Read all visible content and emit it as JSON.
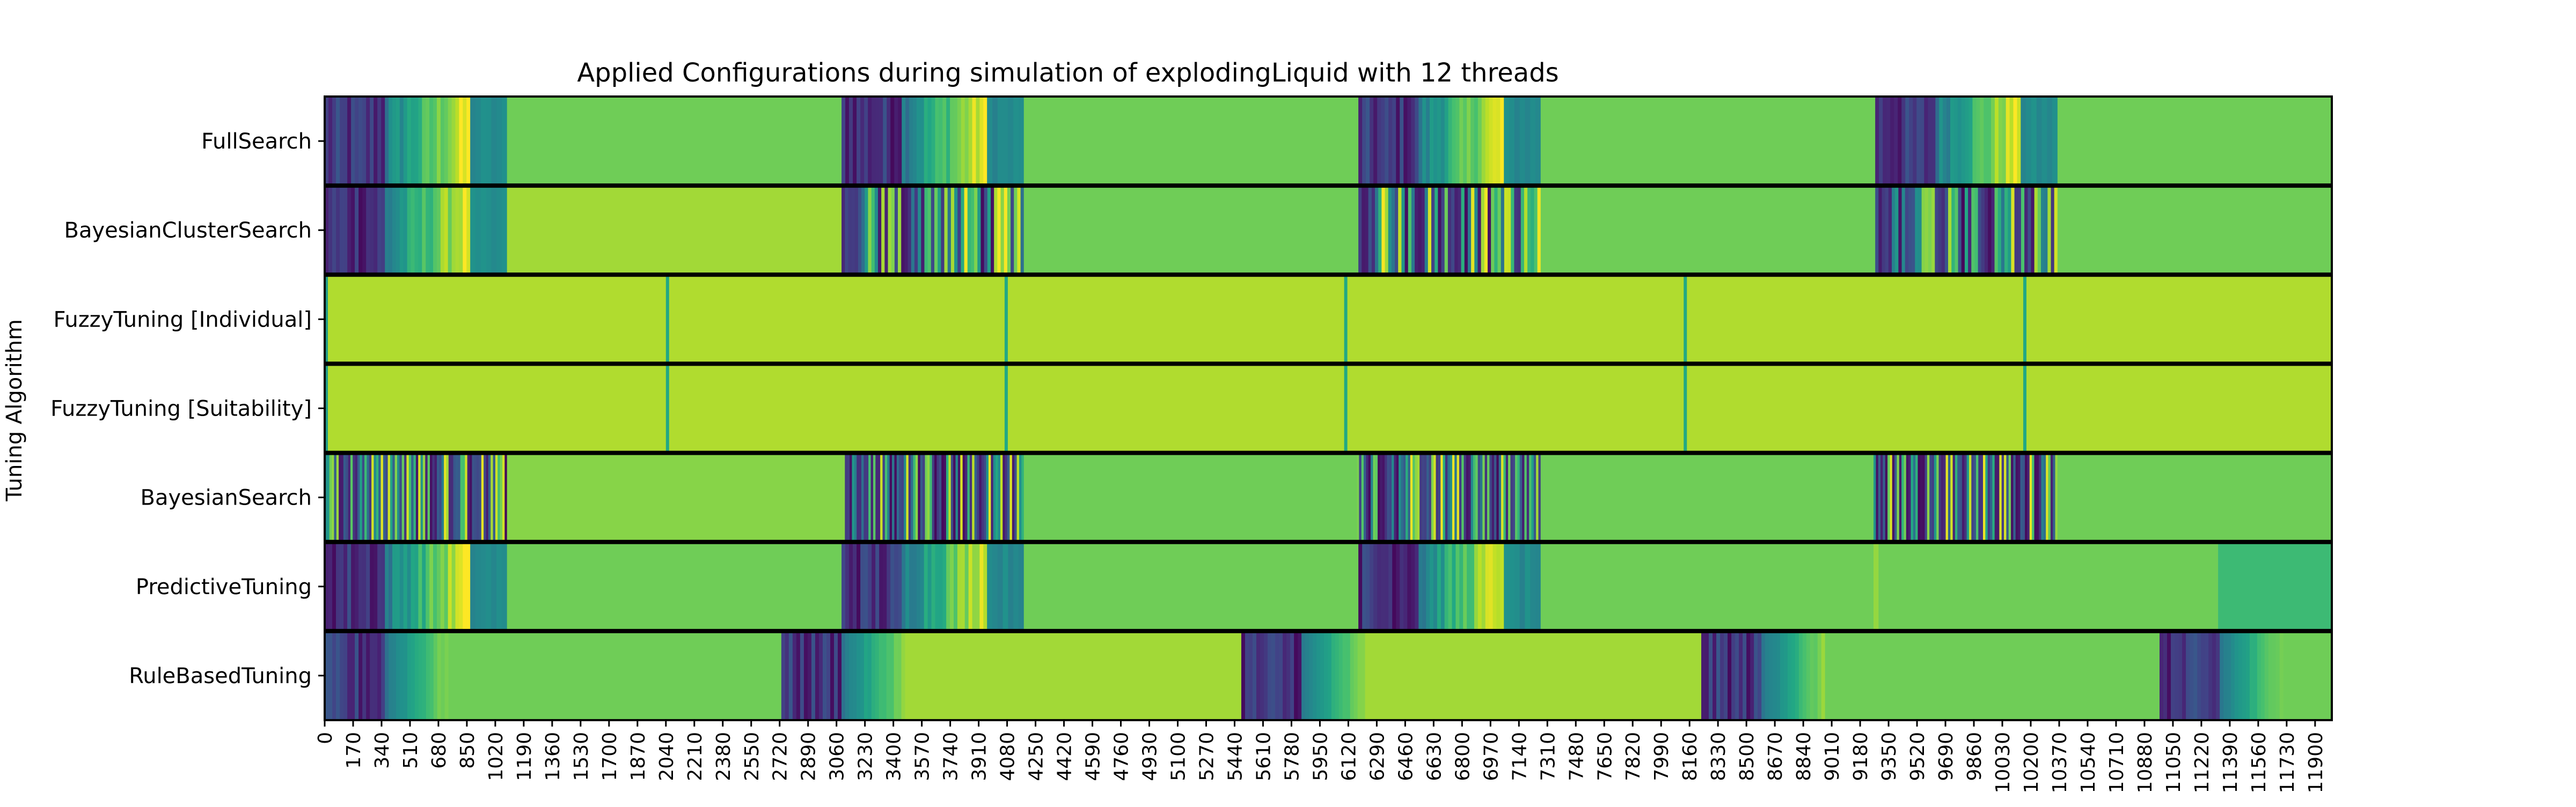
{
  "chart_data": {
    "type": "heatmap",
    "title": "Applied Configurations during simulation of explodingLiquid with 12 threads",
    "xlabel": "",
    "ylabel": "Tuning Algorithm",
    "xlim": [
      0,
      12000
    ],
    "grid": false,
    "colormap": "viridis",
    "rows": [
      "FullSearch",
      "BayesianClusterSearch",
      "FuzzyTuning [Individual]",
      "FuzzyTuning [Suitability]",
      "BayesianSearch",
      "PredictiveTuning",
      "RuleBasedTuning"
    ],
    "x_ticks": [
      0,
      170,
      340,
      510,
      680,
      850,
      1020,
      1190,
      1360,
      1530,
      1700,
      1870,
      2040,
      2210,
      2380,
      2550,
      2720,
      2890,
      3060,
      3230,
      3400,
      3570,
      3740,
      3910,
      4080,
      4250,
      4420,
      4590,
      4760,
      4930,
      5100,
      5270,
      5440,
      5610,
      5780,
      5950,
      6120,
      6290,
      6460,
      6630,
      6800,
      6970,
      7140,
      7310,
      7480,
      7650,
      7820,
      7990,
      8160,
      8330,
      8500,
      8670,
      8840,
      9010,
      9180,
      9350,
      9520,
      9690,
      9860,
      10030,
      10200,
      10370,
      10540,
      10710,
      10880,
      11050,
      11220,
      11390,
      11560,
      11730,
      11900
    ],
    "segments": [
      [
        {
          "start": 0,
          "end": 360,
          "pattern": "dark"
        },
        {
          "start": 360,
          "end": 870,
          "pattern": "ramp"
        },
        {
          "start": 870,
          "end": 1090,
          "pattern": "teal"
        },
        {
          "start": 1090,
          "end": 3090,
          "value": 0.78
        },
        {
          "start": 3090,
          "end": 3450,
          "pattern": "dark"
        },
        {
          "start": 3450,
          "end": 3960,
          "pattern": "ramp"
        },
        {
          "start": 3960,
          "end": 4180,
          "pattern": "teal"
        },
        {
          "start": 4180,
          "end": 6180,
          "value": 0.78
        },
        {
          "start": 6180,
          "end": 6540,
          "pattern": "dark"
        },
        {
          "start": 6540,
          "end": 7050,
          "pattern": "ramp"
        },
        {
          "start": 7050,
          "end": 7270,
          "pattern": "teal"
        },
        {
          "start": 7270,
          "end": 9270,
          "value": 0.78
        },
        {
          "start": 9270,
          "end": 9630,
          "pattern": "dark"
        },
        {
          "start": 9630,
          "end": 10140,
          "pattern": "ramp"
        },
        {
          "start": 10140,
          "end": 10360,
          "pattern": "teal"
        },
        {
          "start": 10360,
          "end": 12000,
          "value": 0.78
        }
      ],
      [
        {
          "start": 0,
          "end": 360,
          "pattern": "dark"
        },
        {
          "start": 360,
          "end": 870,
          "pattern": "ramp"
        },
        {
          "start": 870,
          "end": 1090,
          "pattern": "teal"
        },
        {
          "start": 1090,
          "end": 3090,
          "value": 0.86
        },
        {
          "start": 3090,
          "end": 4180,
          "pattern": "mix"
        },
        {
          "start": 4180,
          "end": 6180,
          "value": 0.78
        },
        {
          "start": 6180,
          "end": 7270,
          "pattern": "mix"
        },
        {
          "start": 7270,
          "end": 9270,
          "value": 0.78
        },
        {
          "start": 9270,
          "end": 10360,
          "pattern": "mix"
        },
        {
          "start": 10360,
          "end": 12000,
          "value": 0.78
        }
      ],
      [
        {
          "start": 0,
          "end": 12000,
          "value": 0.88
        },
        {
          "start": 0,
          "end": 18,
          "value": 0.55
        },
        {
          "start": 2040,
          "end": 2058,
          "value": 0.6
        },
        {
          "start": 4065,
          "end": 4083,
          "value": 0.6
        },
        {
          "start": 6095,
          "end": 6113,
          "value": 0.6
        },
        {
          "start": 8125,
          "end": 8143,
          "value": 0.6
        },
        {
          "start": 10155,
          "end": 10173,
          "value": 0.6
        }
      ],
      [
        {
          "start": 0,
          "end": 12000,
          "value": 0.88
        },
        {
          "start": 0,
          "end": 18,
          "value": 0.55
        },
        {
          "start": 2040,
          "end": 2058,
          "value": 0.6
        },
        {
          "start": 4065,
          "end": 4083,
          "value": 0.6
        },
        {
          "start": 6095,
          "end": 6113,
          "value": 0.6
        },
        {
          "start": 8125,
          "end": 8143,
          "value": 0.6
        },
        {
          "start": 10155,
          "end": 10173,
          "value": 0.6
        }
      ],
      [
        {
          "start": 0,
          "end": 1090,
          "pattern": "stripes"
        },
        {
          "start": 1090,
          "end": 3110,
          "value": 0.82
        },
        {
          "start": 3110,
          "end": 4180,
          "pattern": "stripes"
        },
        {
          "start": 4180,
          "end": 6170,
          "value": 0.78
        },
        {
          "start": 6170,
          "end": 7270,
          "pattern": "stripes"
        },
        {
          "start": 7270,
          "end": 9260,
          "value": 0.78
        },
        {
          "start": 9260,
          "end": 10360,
          "pattern": "stripes"
        },
        {
          "start": 10360,
          "end": 12000,
          "value": 0.78
        }
      ],
      [
        {
          "start": 0,
          "end": 360,
          "pattern": "dark"
        },
        {
          "start": 360,
          "end": 870,
          "pattern": "ramp"
        },
        {
          "start": 870,
          "end": 1090,
          "pattern": "teal"
        },
        {
          "start": 1090,
          "end": 3090,
          "value": 0.78
        },
        {
          "start": 3090,
          "end": 3450,
          "pattern": "dark"
        },
        {
          "start": 3450,
          "end": 3960,
          "pattern": "ramp"
        },
        {
          "start": 3960,
          "end": 4180,
          "pattern": "teal"
        },
        {
          "start": 4180,
          "end": 6180,
          "value": 0.78
        },
        {
          "start": 6180,
          "end": 6540,
          "pattern": "dark"
        },
        {
          "start": 6540,
          "end": 7050,
          "pattern": "ramp"
        },
        {
          "start": 7050,
          "end": 7270,
          "pattern": "teal"
        },
        {
          "start": 7270,
          "end": 9260,
          "value": 0.78
        },
        {
          "start": 9260,
          "end": 9290,
          "value": 0.84
        },
        {
          "start": 9290,
          "end": 11320,
          "value": 0.78
        },
        {
          "start": 11320,
          "end": 12000,
          "value": 0.68
        }
      ],
      [
        {
          "start": 0,
          "end": 360,
          "pattern": "dark"
        },
        {
          "start": 360,
          "end": 740,
          "pattern": "ramp2"
        },
        {
          "start": 740,
          "end": 2730,
          "value": 0.78
        },
        {
          "start": 2730,
          "end": 3090,
          "pattern": "dark"
        },
        {
          "start": 3090,
          "end": 3470,
          "pattern": "ramp2"
        },
        {
          "start": 3470,
          "end": 5480,
          "value": 0.86
        },
        {
          "start": 5480,
          "end": 5840,
          "pattern": "dark"
        },
        {
          "start": 5840,
          "end": 6220,
          "pattern": "ramp2"
        },
        {
          "start": 6220,
          "end": 8230,
          "value": 0.86
        },
        {
          "start": 8230,
          "end": 8590,
          "pattern": "dark"
        },
        {
          "start": 8590,
          "end": 8970,
          "pattern": "ramp2"
        },
        {
          "start": 8970,
          "end": 10970,
          "value": 0.78
        },
        {
          "start": 10970,
          "end": 11330,
          "pattern": "dark"
        },
        {
          "start": 11330,
          "end": 11710,
          "pattern": "ramp2"
        },
        {
          "start": 11710,
          "end": 12000,
          "value": 0.78
        }
      ]
    ]
  }
}
